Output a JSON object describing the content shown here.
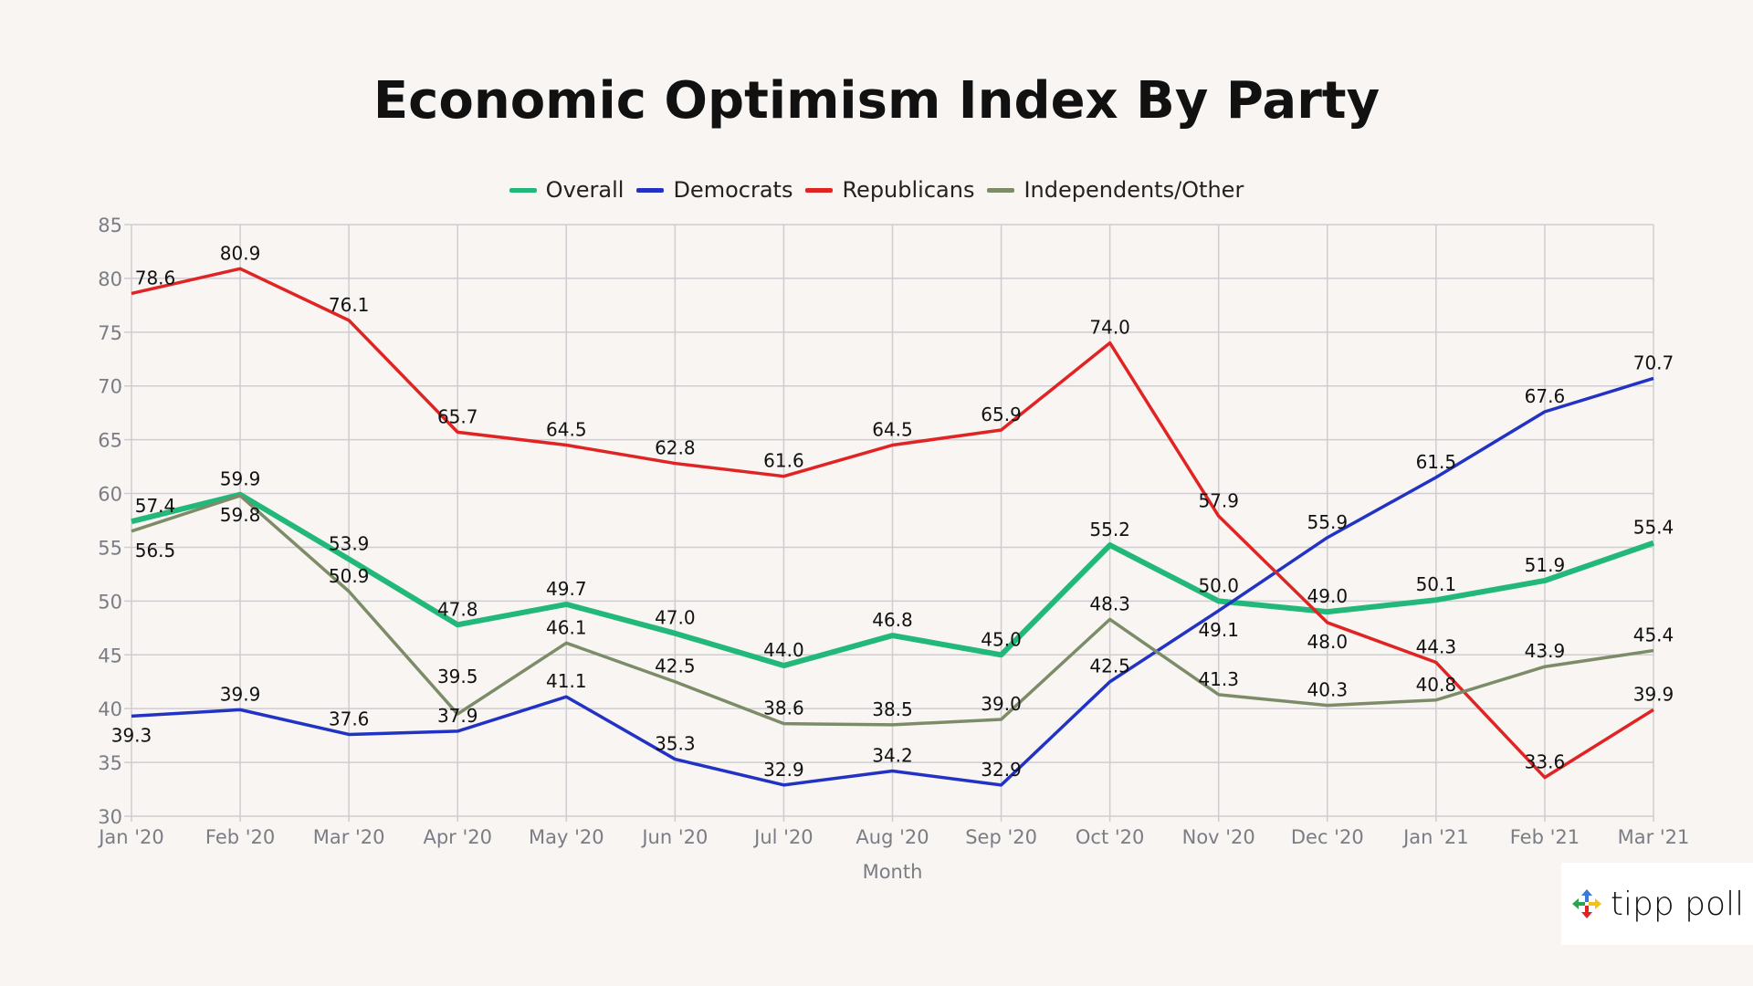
{
  "chart_data": {
    "type": "line",
    "title": "Economic Optimism Index By Party",
    "xlabel": "Month",
    "ylabel": "",
    "ylim": [
      30,
      85
    ],
    "yticks": [
      30,
      35,
      40,
      45,
      50,
      55,
      60,
      65,
      70,
      75,
      80,
      85
    ],
    "grid": true,
    "legend_position": "top",
    "categories": [
      "Jan '20",
      "Feb '20",
      "Mar '20",
      "Apr '20",
      "May '20",
      "Jun '20",
      "Jul '20",
      "Aug '20",
      "Sep '20",
      "Oct '20",
      "Nov '20",
      "Dec '20",
      "Jan '21",
      "Feb '21",
      "Mar '21"
    ],
    "series": [
      {
        "name": "Overall",
        "color": "#22b87a",
        "values": [
          57.4,
          59.9,
          53.9,
          47.8,
          49.7,
          47.0,
          44.0,
          46.8,
          45.0,
          55.2,
          50.0,
          49.0,
          50.1,
          51.9,
          55.4
        ]
      },
      {
        "name": "Democrats",
        "color": "#2233c4",
        "values": [
          39.3,
          39.9,
          37.6,
          37.9,
          41.1,
          35.3,
          32.9,
          34.2,
          32.9,
          42.5,
          49.1,
          55.9,
          61.5,
          67.6,
          70.7
        ]
      },
      {
        "name": "Republicans",
        "color": "#e02424",
        "values": [
          78.6,
          80.9,
          76.1,
          65.7,
          64.5,
          62.8,
          61.6,
          64.5,
          65.9,
          74.0,
          57.9,
          48.0,
          44.3,
          33.6,
          39.9
        ]
      },
      {
        "name": "Independents/Other",
        "color": "#7d8c68",
        "values": [
          56.5,
          59.8,
          50.9,
          39.5,
          46.1,
          42.5,
          38.6,
          38.5,
          39.0,
          48.3,
          41.3,
          40.3,
          40.8,
          43.9,
          45.4
        ]
      }
    ]
  },
  "logo": {
    "text": "tipp poll"
  }
}
